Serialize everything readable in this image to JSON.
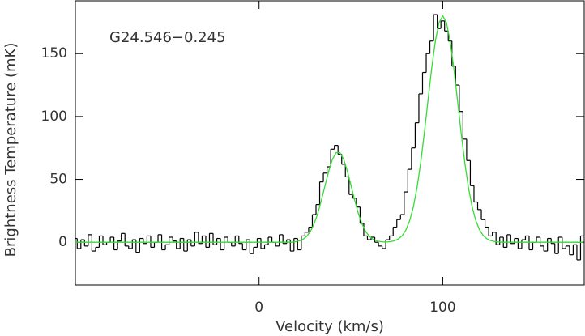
{
  "chart_data": {
    "type": "step",
    "annotation": "G24.546−0.245",
    "xlabel": "Velocity (km/s)",
    "ylabel": "Brightness Temperature (mK)",
    "xlim": [
      -100,
      177
    ],
    "ylim": [
      -34,
      192
    ],
    "xticks": [
      0,
      100
    ],
    "yticks": [
      0,
      50,
      100,
      150
    ],
    "x": [
      -100,
      -98,
      -96,
      -94,
      -92,
      -90,
      -88,
      -86,
      -84,
      -82,
      -80,
      -78,
      -76,
      -74,
      -72,
      -70,
      -68,
      -66,
      -64,
      -62,
      -60,
      -58,
      -56,
      -54,
      -52,
      -50,
      -48,
      -46,
      -44,
      -42,
      -40,
      -38,
      -36,
      -34,
      -32,
      -30,
      -28,
      -26,
      -24,
      -22,
      -20,
      -18,
      -16,
      -14,
      -12,
      -10,
      -8,
      -6,
      -4,
      -2,
      0,
      2,
      4,
      6,
      8,
      10,
      12,
      14,
      16,
      18,
      20,
      22,
      24,
      26,
      28,
      30,
      32,
      34,
      36,
      38,
      40,
      42,
      44,
      46,
      48,
      50,
      52,
      54,
      56,
      58,
      60,
      62,
      64,
      66,
      68,
      70,
      72,
      74,
      76,
      78,
      80,
      82,
      84,
      86,
      88,
      90,
      92,
      94,
      96,
      98,
      100,
      102,
      104,
      106,
      108,
      110,
      112,
      114,
      116,
      118,
      120,
      122,
      124,
      126,
      128,
      130,
      132,
      134,
      136,
      138,
      140,
      142,
      144,
      146,
      148,
      150,
      152,
      154,
      156,
      158,
      160,
      162,
      164,
      166,
      168,
      170,
      172,
      174,
      176
    ],
    "series": [
      {
        "color": "#000000",
        "values": [
          3,
          -5,
          2,
          -3,
          6,
          -7,
          -4,
          5,
          -2,
          0,
          4,
          -6,
          1,
          7,
          -3,
          -5,
          2,
          -8,
          3,
          -1,
          5,
          -4,
          0,
          6,
          -6,
          -2,
          4,
          1,
          -5,
          3,
          -7,
          2,
          -3,
          8,
          -1,
          5,
          -4,
          7,
          -2,
          3,
          -6,
          4,
          0,
          -3,
          5,
          -1,
          -6,
          2,
          -9,
          -4,
          3,
          -5,
          -2,
          4,
          0,
          -3,
          6,
          -1,
          2,
          -7,
          3,
          -6,
          5,
          8,
          12,
          22,
          30,
          48,
          55,
          60,
          74,
          77,
          70,
          62,
          52,
          38,
          35,
          28,
          15,
          5,
          2,
          4,
          0,
          -3,
          -5,
          2,
          5,
          12,
          18,
          22,
          40,
          58,
          75,
          95,
          118,
          135,
          150,
          160,
          181,
          170,
          176,
          168,
          160,
          140,
          125,
          104,
          82,
          65,
          45,
          32,
          26,
          18,
          12,
          5,
          8,
          -2,
          4,
          -4,
          6,
          -1,
          3,
          -5,
          2,
          5,
          -6,
          0,
          4,
          -3,
          -7,
          3,
          -1,
          -9,
          4,
          -5,
          -3,
          -10,
          -2,
          -14,
          5
        ]
      },
      {
        "color": "#33dd33",
        "values": [
          0,
          0,
          0,
          0,
          0,
          0,
          0,
          0,
          0,
          0,
          0,
          0,
          0,
          0,
          0,
          0,
          0,
          0,
          0,
          0,
          0,
          0,
          0,
          0,
          0,
          0,
          0,
          0,
          0,
          0,
          0,
          0,
          0,
          0,
          0,
          0,
          0,
          0,
          0,
          0,
          0,
          0,
          0,
          0,
          0,
          0,
          0,
          0,
          0,
          0,
          0,
          0,
          0,
          0,
          0,
          0,
          0,
          0,
          0,
          0,
          0.5,
          1.2,
          2.4,
          4.8,
          8.7,
          14.8,
          23.1,
          33.7,
          45.5,
          56.9,
          66.2,
          71.3,
          71.3,
          66.2,
          56.9,
          45.5,
          33.7,
          23.1,
          14.8,
          8.7,
          4.8,
          2.4,
          1.2,
          0.5,
          0.2,
          0.3,
          0.6,
          1.3,
          2.8,
          5.4,
          9.9,
          17.2,
          28.1,
          43.4,
          63.3,
          87.1,
          113.2,
          138.6,
          160.2,
          174.8,
          180,
          174.8,
          160.2,
          138.6,
          113.2,
          87.1,
          63.3,
          43.4,
          28.1,
          17.2,
          9.9,
          5.4,
          2.8,
          1.3,
          0.6,
          0.3,
          0,
          0,
          0,
          0,
          0,
          0,
          0,
          0,
          0,
          0,
          0,
          0,
          0,
          0,
          0,
          0,
          0,
          0,
          0,
          0,
          0,
          0,
          0
        ]
      }
    ]
  }
}
